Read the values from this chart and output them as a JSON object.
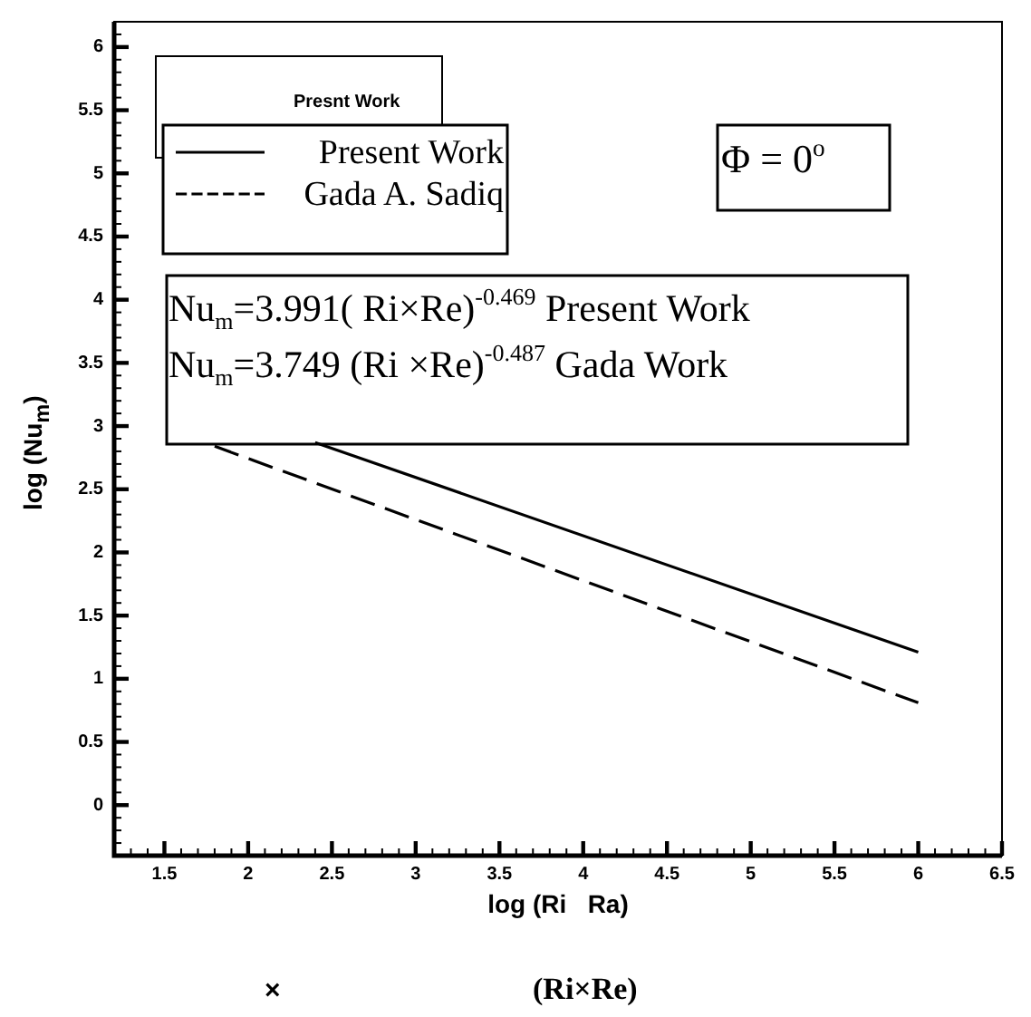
{
  "chart_data": {
    "type": "line",
    "xlabel": "log (Ri   Ra)",
    "ylabel": "log (Nu$_{m}$)",
    "series": [
      {
        "name": "Present Work",
        "color": "#000000",
        "x": [
          2.4,
          6
        ],
        "values": [
          2.87,
          1.21
        ],
        "line_style": "solid"
      },
      {
        "name": "Gada A. Sadiq",
        "color": "#000000",
        "x": [
          1.8,
          6
        ],
        "values": [
          2.84,
          0.81
        ],
        "line_style": "dashed"
      }
    ],
    "xlim": [
      1.2,
      6.5
    ],
    "ylim": [
      -0.4,
      6.2
    ],
    "xticks": [
      {
        "value": 1.2,
        "label": null
      },
      {
        "value": 1.3,
        "label": null
      },
      {
        "value": 1.4,
        "label": null
      },
      1.5,
      {
        "value": 1.6,
        "label": null
      },
      {
        "value": 1.7,
        "label": null
      },
      {
        "value": 1.8,
        "label": null
      },
      {
        "value": 1.9,
        "label": null
      },
      2,
      {
        "value": 2.1,
        "label": null
      },
      {
        "value": 2.2,
        "label": null
      },
      {
        "value": 2.3,
        "label": null
      },
      {
        "value": 2.4,
        "label": null
      },
      2.5,
      {
        "value": 2.6,
        "label": null
      },
      {
        "value": 2.7,
        "label": null
      },
      {
        "value": 2.8,
        "label": null
      },
      {
        "value": 2.9,
        "label": null
      },
      3,
      {
        "value": 3.1,
        "label": null
      },
      {
        "value": 3.2,
        "label": null
      },
      {
        "value": 3.3,
        "label": null
      },
      {
        "value": 3.4,
        "label": null
      },
      3.5,
      {
        "value": 3.6,
        "label": null
      },
      {
        "value": 3.7,
        "label": null
      },
      {
        "value": 3.8,
        "label": null
      },
      {
        "value": 3.9,
        "label": null
      },
      4,
      {
        "value": 4.1,
        "label": null
      },
      {
        "value": 4.2,
        "label": null
      },
      {
        "value": 4.3,
        "label": null
      },
      {
        "value": 4.4,
        "label": null
      },
      4.5,
      {
        "value": 4.6,
        "label": null
      },
      {
        "value": 4.7,
        "label": null
      },
      {
        "value": 4.8,
        "label": null
      },
      {
        "value": 4.9,
        "label": null
      },
      5,
      {
        "value": 5.1,
        "label": null
      },
      {
        "value": 5.2,
        "label": null
      },
      {
        "value": 5.3,
        "label": null
      },
      {
        "value": 5.4,
        "label": null
      },
      5.5,
      {
        "value": 5.6,
        "label": null
      },
      {
        "value": 5.7,
        "label": null
      },
      {
        "value": 5.8,
        "label": null
      },
      {
        "value": 5.9,
        "label": null
      },
      6,
      {
        "value": 6.1,
        "label": null
      },
      {
        "value": 6.2,
        "label": null
      },
      {
        "value": 6.3,
        "label": null
      },
      {
        "value": 6.4,
        "label": null
      },
      6.5
    ],
    "yticks": [
      {
        "value": -0.3,
        "label": null
      },
      {
        "value": -0.2,
        "label": null
      },
      {
        "value": -0.1,
        "label": null
      },
      0,
      {
        "value": 0.1,
        "label": null
      },
      {
        "value": 0.2,
        "label": null
      },
      {
        "value": 0.3,
        "label": null
      },
      {
        "value": 0.4,
        "label": null
      },
      0.5,
      {
        "value": 0.6,
        "label": null
      },
      {
        "value": 0.7,
        "label": null
      },
      {
        "value": 0.8,
        "label": null
      },
      {
        "value": 0.9,
        "label": null
      },
      1,
      {
        "value": 1.1,
        "label": null
      },
      {
        "value": 1.2,
        "label": null
      },
      {
        "value": 1.3,
        "label": null
      },
      {
        "value": 1.4,
        "label": null
      },
      1.5,
      {
        "value": 1.6,
        "label": null
      },
      {
        "value": 1.7,
        "label": null
      },
      {
        "value": 1.8,
        "label": null
      },
      {
        "value": 1.9,
        "label": null
      },
      2,
      {
        "value": 2.1,
        "label": null
      },
      {
        "value": 2.2,
        "label": null
      },
      {
        "value": 2.3,
        "label": null
      },
      {
        "value": 2.4,
        "label": null
      },
      2.5,
      {
        "value": 2.6,
        "label": null
      },
      {
        "value": 2.7,
        "label": null
      },
      {
        "value": 2.8,
        "label": null
      },
      {
        "value": 2.9,
        "label": null
      },
      3,
      {
        "value": 3.1,
        "label": null
      },
      {
        "value": 3.2,
        "label": null
      },
      {
        "value": 3.3,
        "label": null
      },
      {
        "value": 3.4,
        "label": null
      },
      3.5,
      {
        "value": 3.6,
        "label": null
      },
      {
        "value": 3.7,
        "label": null
      },
      {
        "value": 3.8,
        "label": null
      },
      {
        "value": 3.9,
        "label": null
      },
      4,
      {
        "value": 4.1,
        "label": null
      },
      {
        "value": 4.2,
        "label": null
      },
      {
        "value": 4.3,
        "label": null
      },
      {
        "value": 4.4,
        "label": null
      },
      4.5,
      {
        "value": 4.6,
        "label": null
      },
      {
        "value": 4.7,
        "label": null
      },
      {
        "value": 4.8,
        "label": null
      },
      {
        "value": 4.9,
        "label": null
      },
      5,
      {
        "value": 5.1,
        "label": null
      },
      {
        "value": 5.2,
        "label": null
      },
      {
        "value": 5.3,
        "label": null
      },
      {
        "value": 5.4,
        "label": null
      },
      5.5,
      {
        "value": 5.6,
        "label": null
      },
      {
        "value": 5.7,
        "label": null
      },
      {
        "value": 5.8,
        "label": null
      },
      {
        "value": 5.9,
        "label": null
      },
      6,
      {
        "value": 6.1,
        "label": null
      }
    ],
    "grid": false,
    "legend": "top left",
    "marker": "none",
    "annotations": [
      "Presnt Work",
      "Φ = 0$^{o}$",
      "Nu$_{m}$=3.991( Ri×Re)$^{-0.469}$ Present Work",
      "Nu$_{m}$=3.749 (Ri ×Re)$^{-0.487}$ Gada Work",
      "×",
      "(Ri×Re)"
    ]
  }
}
